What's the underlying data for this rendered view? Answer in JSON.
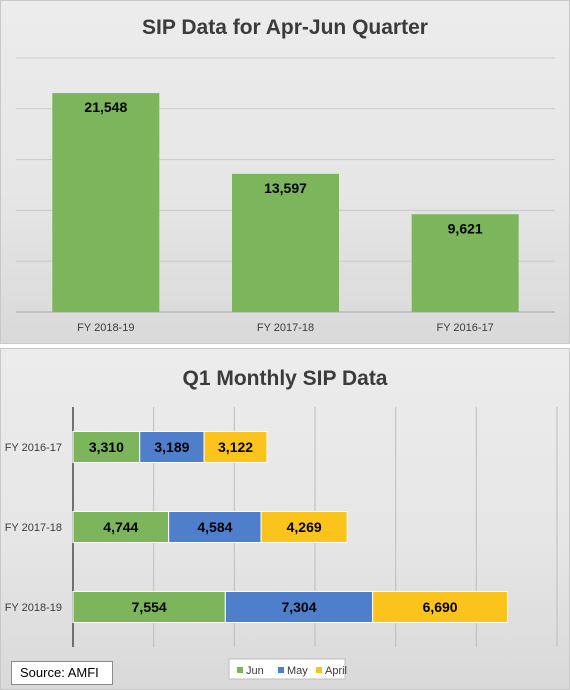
{
  "chart_data": [
    {
      "type": "bar",
      "orientation": "vertical",
      "title": "SIP Data for Apr-Jun Quarter",
      "categories": [
        "FY 2018-19",
        "FY 2017-18",
        "FY 2016-17"
      ],
      "values": [
        21548,
        13597,
        9621
      ],
      "data_labels": [
        "21,548",
        "13,597",
        "9,621"
      ],
      "ylim": [
        0,
        25000
      ],
      "grid": true,
      "color": "#7cb55c"
    },
    {
      "type": "bar",
      "orientation": "horizontal",
      "stacked": true,
      "title": "Q1 Monthly SIP Data",
      "categories": [
        "FY 2016-17",
        "FY 2017-18",
        "FY 2018-19"
      ],
      "series": [
        {
          "name": "Jun",
          "color": "#7cb55c",
          "values": [
            3310,
            4744,
            7554
          ],
          "labels": [
            "3,310",
            "4,744",
            "7,554"
          ]
        },
        {
          "name": "May",
          "color": "#4f7fcb",
          "values": [
            3189,
            4584,
            7304
          ],
          "labels": [
            "3,189",
            "4,584",
            "7,304"
          ]
        },
        {
          "name": "April",
          "color": "#fbc41c",
          "values": [
            3122,
            4269,
            6690
          ],
          "labels": [
            "3,122",
            "4,269",
            "6,690"
          ]
        }
      ],
      "xlim": [
        0,
        24000
      ],
      "grid": true,
      "legend": "bottom"
    }
  ],
  "source": "Source: AMFI"
}
